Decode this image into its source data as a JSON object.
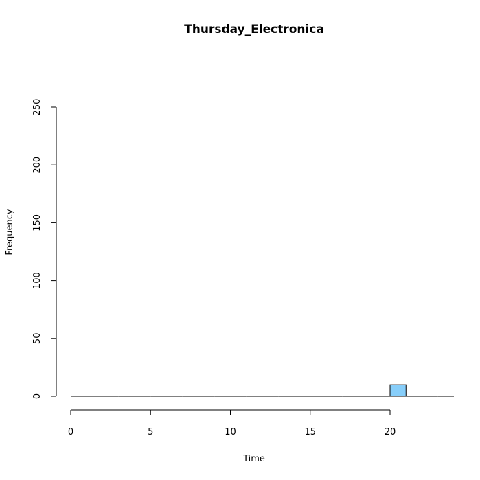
{
  "chart_data": {
    "type": "bar",
    "title": "Thursday_Electronica",
    "xlabel": "Time",
    "ylabel": "Frequency",
    "xlim": [
      0,
      24
    ],
    "ylim": [
      0,
      250
    ],
    "xticks": [
      0,
      5,
      10,
      15,
      20
    ],
    "yticks": [
      0,
      50,
      100,
      150,
      200,
      250
    ],
    "bins": [
      {
        "start": 0,
        "end": 1,
        "count": 0
      },
      {
        "start": 1,
        "end": 2,
        "count": 0
      },
      {
        "start": 2,
        "end": 3,
        "count": 0
      },
      {
        "start": 3,
        "end": 4,
        "count": 0
      },
      {
        "start": 4,
        "end": 5,
        "count": 0
      },
      {
        "start": 5,
        "end": 6,
        "count": 0
      },
      {
        "start": 6,
        "end": 7,
        "count": 0
      },
      {
        "start": 7,
        "end": 8,
        "count": 0
      },
      {
        "start": 8,
        "end": 9,
        "count": 0
      },
      {
        "start": 9,
        "end": 10,
        "count": 0
      },
      {
        "start": 10,
        "end": 11,
        "count": 0
      },
      {
        "start": 11,
        "end": 12,
        "count": 0
      },
      {
        "start": 12,
        "end": 13,
        "count": 0
      },
      {
        "start": 13,
        "end": 14,
        "count": 0
      },
      {
        "start": 14,
        "end": 15,
        "count": 0
      },
      {
        "start": 15,
        "end": 16,
        "count": 0
      },
      {
        "start": 16,
        "end": 17,
        "count": 0
      },
      {
        "start": 17,
        "end": 18,
        "count": 0
      },
      {
        "start": 18,
        "end": 19,
        "count": 0
      },
      {
        "start": 19,
        "end": 20,
        "count": 0
      },
      {
        "start": 20,
        "end": 21,
        "count": 10
      },
      {
        "start": 21,
        "end": 22,
        "count": 0
      },
      {
        "start": 22,
        "end": 23,
        "count": 0
      },
      {
        "start": 23,
        "end": 24,
        "count": 0
      }
    ],
    "bar_color": "#87CEFA",
    "grid": false
  }
}
